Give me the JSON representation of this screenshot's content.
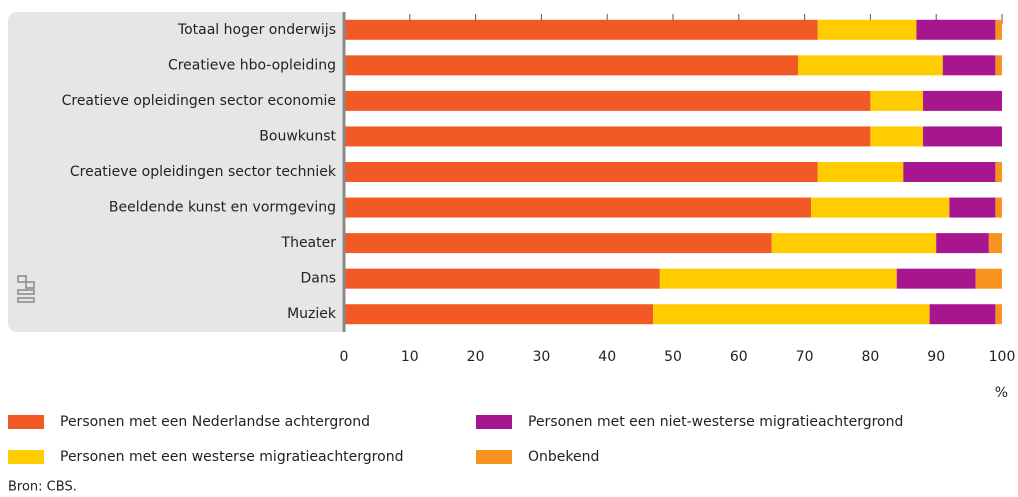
{
  "chart_data": {
    "type": "stacked_barh",
    "categories": [
      "Totaal hoger onderwijs",
      "Creatieve hbo-opleiding",
      "Creatieve opleidingen sector economie",
      "Bouwkunst",
      "Creatieve opleidingen sector techniek",
      "Beeldende kunst en vormgeving",
      "Theater",
      "Dans",
      "Muziek"
    ],
    "series": [
      {
        "name": "Personen met een Nederlandse achtergrond",
        "color": "#f15a24",
        "values": [
          72,
          69,
          80,
          80,
          72,
          71,
          65,
          48,
          47
        ]
      },
      {
        "name": "Personen met een westerse migratieachtergrond",
        "color": "#ffcc00",
        "values": [
          15,
          22,
          8,
          8,
          13,
          21,
          25,
          36,
          42
        ]
      },
      {
        "name": "Personen met een niet-westerse migratieachtergrond",
        "color": "#a8168f",
        "values": [
          12,
          8,
          12,
          12,
          14,
          7,
          8,
          12,
          10
        ]
      },
      {
        "name": "Onbekend",
        "color": "#f7931e",
        "values": [
          1,
          1,
          0,
          0,
          1,
          1,
          2,
          4,
          1
        ]
      }
    ],
    "xlim": [
      0,
      100
    ],
    "xticks": [
      0,
      10,
      20,
      30,
      40,
      50,
      60,
      70,
      80,
      90,
      100
    ],
    "xlabel": "%",
    "source": "Bron: CBS."
  }
}
